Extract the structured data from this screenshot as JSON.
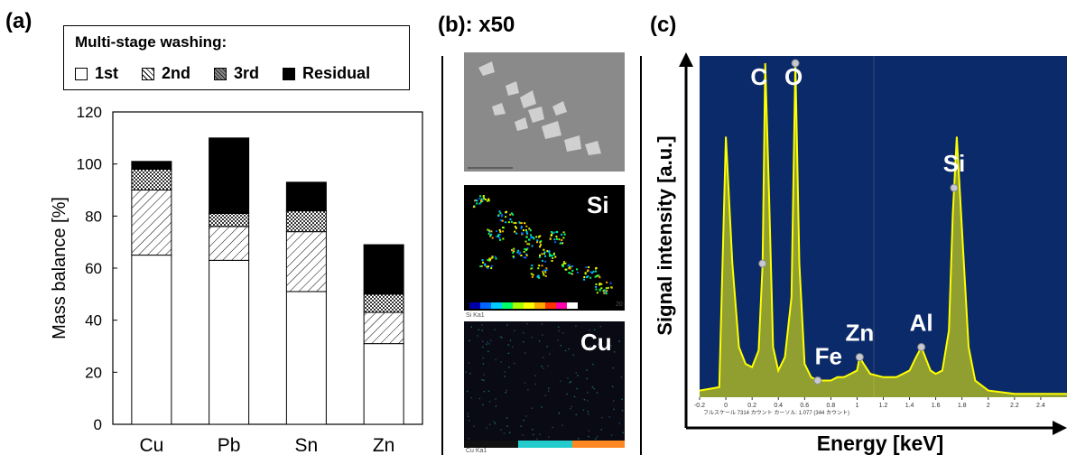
{
  "panels": {
    "a_label": "(a)",
    "b_label": "(b): x50",
    "c_label": "(c)"
  },
  "legend": {
    "title": "Multi-stage washing:",
    "items": [
      "1st",
      "2nd",
      "3rd",
      "Residual"
    ]
  },
  "mapping": {
    "si_label": "Si",
    "cu_label": "Cu",
    "si_scale": "Si Ka1",
    "scale_value": "20",
    "cu_scale": "Cu Ka1"
  },
  "chart_data": [
    {
      "type": "bar",
      "stacked": true,
      "categories": [
        "Cu",
        "Pb",
        "Sn",
        "Zn"
      ],
      "series": [
        {
          "name": "1st",
          "values": [
            65,
            63,
            51,
            31
          ],
          "fill": "#ffffff"
        },
        {
          "name": "2nd",
          "values": [
            25,
            13,
            23,
            12
          ],
          "fill": "hatch"
        },
        {
          "name": "3rd",
          "values": [
            8,
            5,
            8,
            7
          ],
          "fill": "crosshatch"
        },
        {
          "name": "Residual",
          "values": [
            3,
            29,
            11,
            19
          ],
          "fill": "#000000"
        }
      ],
      "ylabel": "Mass balance [%]",
      "ylim": [
        0,
        120
      ],
      "yticks": [
        "0",
        "20",
        "40",
        "60",
        "80",
        "100",
        "120"
      ],
      "grid": false
    },
    {
      "type": "line",
      "xlabel": "Energy [keV]",
      "ylabel": "Signal intensity [a.u.]",
      "xlim": [
        -0.2,
        2.6
      ],
      "ylim": [
        0,
        100
      ],
      "background": "#0a2a6a",
      "line_color": "#ffff00",
      "x": [
        -0.2,
        -0.05,
        0.0,
        0.05,
        0.1,
        0.15,
        0.2,
        0.25,
        0.28,
        0.3,
        0.33,
        0.36,
        0.4,
        0.45,
        0.5,
        0.53,
        0.56,
        0.6,
        0.65,
        0.7,
        0.75,
        0.8,
        0.85,
        0.9,
        0.95,
        1.0,
        1.02,
        1.05,
        1.1,
        1.2,
        1.3,
        1.4,
        1.45,
        1.49,
        1.52,
        1.56,
        1.6,
        1.65,
        1.7,
        1.73,
        1.76,
        1.8,
        1.85,
        1.9,
        2.0,
        2.2,
        2.4,
        2.6
      ],
      "y": [
        2,
        3,
        78,
        40,
        15,
        10,
        9,
        14,
        40,
        100,
        60,
        15,
        8,
        12,
        30,
        100,
        40,
        10,
        6,
        5,
        5,
        5,
        6,
        6,
        7,
        8,
        12,
        10,
        7,
        6,
        6,
        8,
        12,
        15,
        12,
        8,
        7,
        8,
        20,
        55,
        78,
        50,
        15,
        5,
        2,
        1,
        1,
        1
      ],
      "peaks": [
        {
          "label": "C",
          "x": 0.28
        },
        {
          "label": "O",
          "x": 0.53
        },
        {
          "label": "Fe",
          "x": 0.7
        },
        {
          "label": "Zn",
          "x": 1.02
        },
        {
          "label": "Al",
          "x": 1.49
        },
        {
          "label": "Si",
          "x": 1.74
        }
      ],
      "xticks": [
        "-0.2",
        "0",
        "0.2",
        "0.4",
        "0.6",
        "0.8",
        "1",
        "1.2",
        "1.4",
        "1.6",
        "1.8",
        "2",
        "2.2",
        "2.4"
      ],
      "footer_text": "フルスケール 7314 カウント カーソル: 1.077 (344 カウント)"
    }
  ]
}
